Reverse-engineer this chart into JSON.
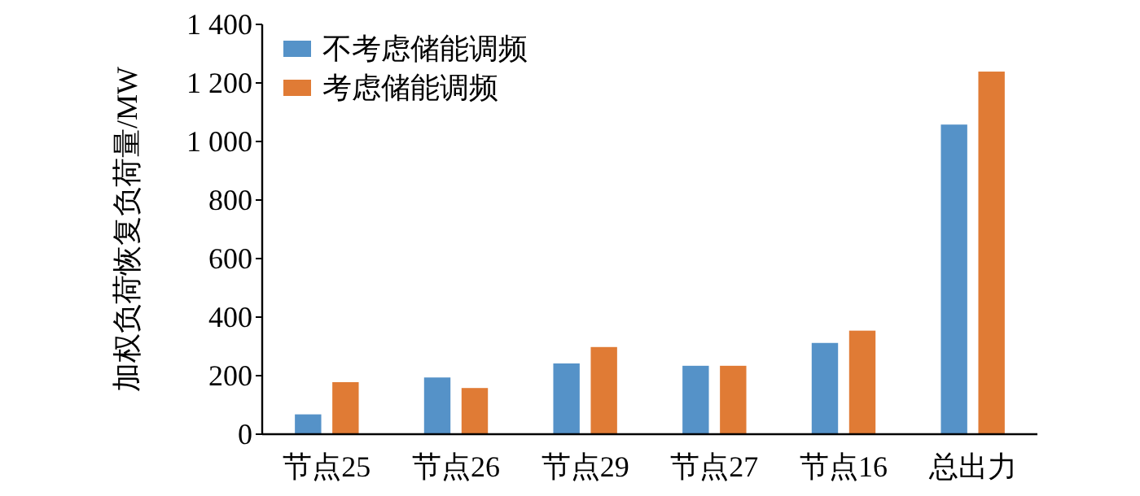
{
  "chart_data": {
    "type": "bar",
    "ylabel": "加权负荷恢复负荷量/MW",
    "categories": [
      "节点25",
      "节点26",
      "节点29",
      "节点27",
      "节点16",
      "总出力"
    ],
    "series": [
      {
        "name": "不考虑储能调频",
        "color": "#5592c8",
        "values": [
          70,
          196,
          244,
          236,
          314,
          1060
        ]
      },
      {
        "name": "考虑储能调频",
        "color": "#e07b35",
        "values": [
          180,
          160,
          300,
          236,
          356,
          1241
        ]
      }
    ],
    "ylim": [
      0,
      1400
    ],
    "yticks": [
      0,
      200,
      400,
      600,
      800,
      {
        "value": 1000,
        "label": "1 000"
      },
      {
        "value": 1200,
        "label": "1 200"
      },
      {
        "value": 1400,
        "label": "1 400"
      }
    ],
    "grid": false,
    "legend": "top left"
  }
}
